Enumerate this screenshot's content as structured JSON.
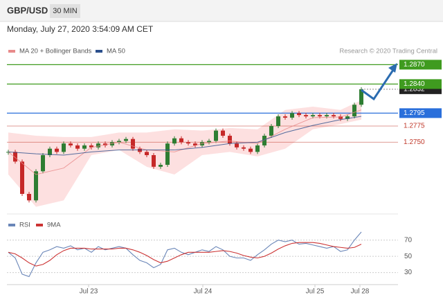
{
  "header": {
    "symbol": "GBP/USD",
    "timeframe": "30 MIN",
    "date": "Monday, July 27, 2020 3:54:09 AM CET",
    "source": "Research © 2020 Trading Central"
  },
  "chart_data": [
    {
      "type": "candlestick",
      "up_color": "#2e7d32",
      "down_color": "#c62828",
      "close": [
        1.2735,
        1.272,
        1.267,
        1.266,
        1.2705,
        1.273,
        1.274,
        1.2735,
        1.2748,
        1.2745,
        1.274,
        1.2745,
        1.2742,
        1.2748,
        1.2745,
        1.275,
        1.2752,
        1.2755,
        1.274,
        1.2735,
        1.273,
        1.2712,
        1.2715,
        1.2748,
        1.2756,
        1.275,
        1.2748,
        1.2745,
        1.275,
        1.2752,
        1.2768,
        1.276,
        1.2748,
        1.2742,
        1.274,
        1.2735,
        1.2745,
        1.276,
        1.2775,
        1.279,
        1.2788,
        1.2795,
        1.2792,
        1.279,
        1.2792,
        1.279,
        1.2792,
        1.279,
        1.2786,
        1.279,
        1.2808,
        1.2832
      ],
      "series": [
        {
          "name": "MA 20 + Bollinger Bands",
          "color": "#e88a8a",
          "band_color": "#fde0e0",
          "x": [
            0,
            4,
            8,
            12,
            16,
            20,
            24,
            28,
            32,
            36,
            40,
            44,
            48,
            51
          ],
          "values": [
            1.2735,
            1.27,
            1.271,
            1.2742,
            1.275,
            1.2738,
            1.2735,
            1.2748,
            1.2752,
            1.2748,
            1.277,
            1.2788,
            1.2789,
            1.28
          ],
          "upper": [
            1.2765,
            1.276,
            1.2758,
            1.2758,
            1.2765,
            1.2765,
            1.277,
            1.2768,
            1.2772,
            1.277,
            1.28,
            1.2805,
            1.28,
            1.2815
          ],
          "lower": [
            1.27,
            1.265,
            1.266,
            1.273,
            1.2738,
            1.2712,
            1.27,
            1.273,
            1.2735,
            1.2728,
            1.274,
            1.277,
            1.2778,
            1.2785
          ]
        },
        {
          "name": "MA 50",
          "color": "#2b4f8c",
          "x": [
            0,
            4,
            8,
            12,
            16,
            20,
            24,
            28,
            32,
            36,
            40,
            44,
            48,
            51
          ],
          "values": [
            1.2735,
            1.2732,
            1.273,
            1.2735,
            1.2738,
            1.2738,
            1.2738,
            1.2742,
            1.2748,
            1.275,
            1.2765,
            1.2776,
            1.2785,
            1.279
          ]
        }
      ],
      "levels": [
        {
          "value": 1.287,
          "label": "1.2870",
          "color": "#3f9b1f",
          "boxed": true
        },
        {
          "value": 1.284,
          "label": "1.2840",
          "color": "#3f9b1f",
          "boxed": true
        },
        {
          "value": 1.2795,
          "label": "1.2795",
          "color": "#2a6fdb",
          "boxed": true
        },
        {
          "value": 1.2775,
          "label": "1.2775",
          "color": "#c0392b",
          "boxed": false
        },
        {
          "value": 1.275,
          "label": "1.2750",
          "color": "#c0392b",
          "boxed": false
        }
      ],
      "current": {
        "value": 1.2832,
        "label": "1.2832"
      },
      "xlim": [
        -0.2,
        56.3
      ],
      "ylim": [
        1.264,
        1.2879
      ]
    },
    {
      "type": "line",
      "series": [
        {
          "name": "RSI",
          "color": "#6a86b8",
          "values": [
            55,
            48,
            28,
            25,
            42,
            55,
            58,
            62,
            60,
            63,
            58,
            60,
            55,
            62,
            58,
            60,
            62,
            60,
            52,
            45,
            42,
            36,
            40,
            58,
            60,
            55,
            52,
            55,
            58,
            56,
            62,
            58,
            50,
            48,
            48,
            45,
            52,
            58,
            65,
            70,
            68,
            70,
            65,
            66,
            64,
            62,
            60,
            62,
            56,
            58,
            70,
            80
          ]
        },
        {
          "name": "9MA",
          "color": "#cc3333",
          "values": [
            55,
            53,
            48,
            42,
            38,
            40,
            45,
            52,
            57,
            60,
            60,
            60,
            59,
            59,
            59,
            59,
            60,
            60,
            58,
            55,
            51,
            46,
            42,
            44,
            48,
            52,
            55,
            55,
            55,
            55,
            56,
            57,
            56,
            54,
            51,
            49,
            48,
            50,
            54,
            59,
            63,
            66,
            67,
            67,
            67,
            66,
            64,
            62,
            61,
            60,
            61,
            65
          ]
        }
      ],
      "xlim": [
        -0.2,
        56.3
      ],
      "ylim": [
        16,
        80
      ],
      "yticks": [
        70,
        50,
        30
      ],
      "xticks": [
        {
          "value": 11.6,
          "label": "Jul 23"
        },
        {
          "value": 28.1,
          "label": "Jul 24"
        },
        {
          "value": 44.3,
          "label": "Jul 25"
        },
        {
          "value": 50.8,
          "label": "Jul 28"
        }
      ]
    }
  ]
}
